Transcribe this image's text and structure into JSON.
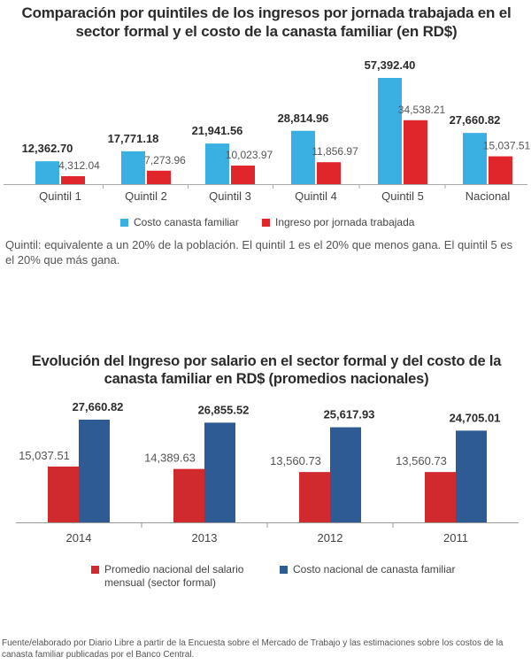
{
  "chart_data": [
    {
      "type": "bar",
      "title": "Comparación por quintiles de los ingresos por jornada trabajada en el sector formal y el costo de la canasta familiar (en RD$)",
      "categories": [
        "Quintil 1",
        "Quintil  2",
        "Quintil 3",
        "Quintil 4",
        "Quintil 5",
        "Nacional"
      ],
      "series": [
        {
          "name": "Costo canasta familiar",
          "color": "#3ab0e2",
          "values": [
            12362.7,
            17771.18,
            21941.56,
            28814.96,
            57392.4,
            27660.82
          ],
          "labels": [
            "12,362.70",
            "17,771.18",
            "21,941.56",
            "28,814.96",
            "57,392.40",
            "27,660.82"
          ]
        },
        {
          "name": "Ingreso por jornada trabajada",
          "color": "#e0262b",
          "values": [
            4312.04,
            7273.96,
            10023.97,
            11856.97,
            34538.21,
            15037.51
          ],
          "labels": [
            "4,312.04",
            "7,273.96",
            "10,023.97",
            "11,856.97",
            "34,538.21",
            "15,037.51"
          ]
        }
      ],
      "ylim": [
        0,
        60000
      ],
      "legend": "bottom"
    },
    {
      "type": "bar",
      "title": "Evolución del Ingreso  por salario en el sector formal y del  costo de la canasta familiar en RD$ (promedios  nacionales)",
      "categories": [
        "2014",
        "2013",
        "2012",
        "2011"
      ],
      "series": [
        {
          "name": "Promedio nacional del salario mensual (sector formal)",
          "color": "#d02a2e",
          "values": [
            15037.51,
            14389.63,
            13560.73,
            13560.73
          ],
          "labels": [
            "15,037.51",
            "14,389.63",
            "13,560.73",
            "13,560.73"
          ]
        },
        {
          "name": "Costo nacional de canasta familiar",
          "color": "#2e5b93",
          "values": [
            27660.82,
            26855.52,
            25617.93,
            24705.01
          ],
          "labels": [
            "27,660.82",
            "26,855.52",
            "25,617.93",
            "24,705.01"
          ]
        }
      ],
      "ylim": [
        0,
        30000
      ],
      "legend": "bottom"
    }
  ],
  "chart1": {
    "title": "Comparación por quintiles de los ingresos por jornada trabajada en el sector formal y el costo de la canasta familiar (en RD$)",
    "legend_a": "Costo canasta familiar",
    "legend_b": "Ingreso por jornada trabajada",
    "note": "Quintil: equivalente a un 20% de la población. El quintil 1 es el 20% que menos gana. El quintil 5 es el 20% que más gana."
  },
  "chart2": {
    "title": "Evolución del Ingreso  por salario en el sector formal y del  costo de la canasta familiar en RD$ (promedios  nacionales)",
    "legend_a": "Promedio nacional del salario mensual (sector formal)",
    "legend_b": "Costo nacional de canasta familiar"
  },
  "source": "Fuente/elaborado por Diario Libre a partir de la Encuesta sobre el Mercado de Trabajo y las estimaciones sobre los costos de la canasta familiar publicadas por el Banco Central."
}
